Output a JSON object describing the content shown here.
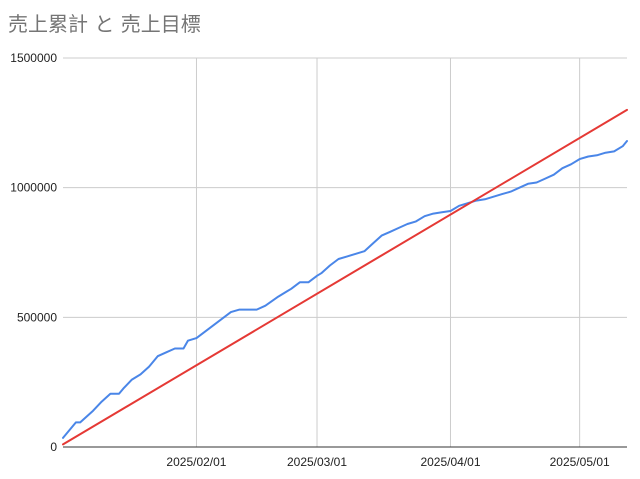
{
  "chart_data": {
    "type": "line",
    "title": "売上累計 と 売上目標",
    "xlabel": "",
    "ylabel": "",
    "x_range": [
      "2025-01-01",
      "2025-05-12"
    ],
    "ylim": [
      0,
      1500000
    ],
    "y_ticks": [
      0,
      500000,
      1000000,
      1500000
    ],
    "y_tick_labels": [
      "0",
      "500000",
      "1000000",
      "1500000"
    ],
    "x_ticks": [
      "2025-02-01",
      "2025-03-01",
      "2025-04-01",
      "2025-05-01"
    ],
    "x_tick_labels": [
      "2025/02/01",
      "2025/03/01",
      "2025/04/01",
      "2025/05/01"
    ],
    "grid": true,
    "legend": "none",
    "colors": {
      "actual": "#4a86e8",
      "target": "#e53935",
      "grid": "#cccccc",
      "axis": "#333333",
      "title": "#757575"
    },
    "series": [
      {
        "key": "actual",
        "x": [
          "2025-01-01",
          "2025-01-04",
          "2025-01-05",
          "2025-01-06",
          "2025-01-08",
          "2025-01-10",
          "2025-01-12",
          "2025-01-14",
          "2025-01-15",
          "2025-01-17",
          "2025-01-19",
          "2025-01-21",
          "2025-01-23",
          "2025-01-25",
          "2025-01-27",
          "2025-01-29",
          "2025-01-30",
          "2025-02-01",
          "2025-02-03",
          "2025-02-05",
          "2025-02-07",
          "2025-02-09",
          "2025-02-11",
          "2025-02-13",
          "2025-02-15",
          "2025-02-17",
          "2025-02-20",
          "2025-02-22",
          "2025-02-23",
          "2025-02-25",
          "2025-02-27",
          "2025-03-01",
          "2025-03-02",
          "2025-03-04",
          "2025-03-06",
          "2025-03-08",
          "2025-03-10",
          "2025-03-12",
          "2025-03-14",
          "2025-03-16",
          "2025-03-18",
          "2025-03-20",
          "2025-03-22",
          "2025-03-24",
          "2025-03-26",
          "2025-03-28",
          "2025-03-30",
          "2025-04-01",
          "2025-04-03",
          "2025-04-05",
          "2025-04-07",
          "2025-04-09",
          "2025-04-11",
          "2025-04-13",
          "2025-04-15",
          "2025-04-17",
          "2025-04-19",
          "2025-04-21",
          "2025-04-23",
          "2025-04-25",
          "2025-04-27",
          "2025-04-29",
          "2025-05-01",
          "2025-05-03",
          "2025-05-05",
          "2025-05-07",
          "2025-05-09",
          "2025-05-11",
          "2025-05-12"
        ],
        "values": [
          35000,
          95000,
          95000,
          110000,
          140000,
          175000,
          205000,
          205000,
          225000,
          260000,
          280000,
          310000,
          350000,
          365000,
          380000,
          380000,
          410000,
          420000,
          445000,
          470000,
          495000,
          520000,
          530000,
          530000,
          530000,
          545000,
          580000,
          600000,
          610000,
          635000,
          635000,
          660000,
          670000,
          700000,
          725000,
          735000,
          745000,
          755000,
          785000,
          815000,
          830000,
          845000,
          860000,
          870000,
          890000,
          900000,
          905000,
          910000,
          930000,
          940000,
          950000,
          955000,
          965000,
          975000,
          985000,
          1000000,
          1015000,
          1020000,
          1035000,
          1050000,
          1075000,
          1090000,
          1110000,
          1120000,
          1125000,
          1135000,
          1140000,
          1160000,
          1180000
        ]
      },
      {
        "key": "target",
        "x": [
          "2025-01-01",
          "2025-05-12"
        ],
        "values": [
          10000,
          1300000
        ]
      }
    ]
  }
}
